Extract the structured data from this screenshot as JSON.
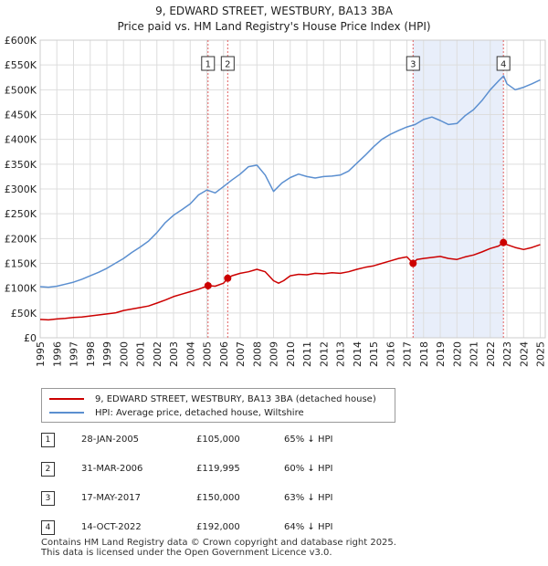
{
  "title": {
    "line1": "9, EDWARD STREET, WESTBURY, BA13 3BA",
    "line2": "Price paid vs. HM Land Registry's House Price Index (HPI)"
  },
  "legend": {
    "property": "9, EDWARD STREET, WESTBURY, BA13 3BA (detached house)",
    "hpi": "HPI: Average price, detached house, Wiltshire"
  },
  "colors": {
    "property": "#cc0000",
    "hpi": "#5b8fd0",
    "shade": "#e8eefa",
    "grid": "#dddddd",
    "marker_line": "#e06060"
  },
  "sales": [
    {
      "num": "1",
      "date": "28-JAN-2005",
      "price": "£105,000",
      "hpi": "65% ↓ HPI"
    },
    {
      "num": "2",
      "date": "31-MAR-2006",
      "price": "£119,995",
      "hpi": "60% ↓ HPI"
    },
    {
      "num": "3",
      "date": "17-MAY-2017",
      "price": "£150,000",
      "hpi": "63% ↓ HPI"
    },
    {
      "num": "4",
      "date": "14-OCT-2022",
      "price": "£192,000",
      "hpi": "64% ↓ HPI"
    }
  ],
  "footer": {
    "line1": "Contains HM Land Registry data © Crown copyright and database right 2025.",
    "line2": "This data is licensed under the Open Government Licence v3.0."
  },
  "chart_data": {
    "type": "line",
    "title": "9, EDWARD STREET, WESTBURY, BA13 3BA — Price paid vs. HM Land Registry's House Price Index (HPI)",
    "xlabel": "",
    "ylabel": "",
    "xlim": [
      1995,
      2025.3
    ],
    "ylim": [
      0,
      600000
    ],
    "grid": true,
    "legend_position": "below",
    "x_ticks": [
      "1995",
      "1996",
      "1997",
      "1998",
      "1999",
      "2000",
      "2001",
      "2002",
      "2003",
      "2004",
      "2005",
      "2006",
      "2007",
      "2008",
      "2009",
      "2010",
      "2011",
      "2012",
      "2013",
      "2014",
      "2015",
      "2016",
      "2017",
      "2018",
      "2019",
      "2020",
      "2021",
      "2022",
      "2023",
      "2024",
      "2025"
    ],
    "y_ticks": [
      {
        "value": 0,
        "label": "£0"
      },
      {
        "value": 50000,
        "label": "£50K"
      },
      {
        "value": 100000,
        "label": "£100K"
      },
      {
        "value": 150000,
        "label": "£150K"
      },
      {
        "value": 200000,
        "label": "£200K"
      },
      {
        "value": 250000,
        "label": "£250K"
      },
      {
        "value": 300000,
        "label": "£300K"
      },
      {
        "value": 350000,
        "label": "£350K"
      },
      {
        "value": 400000,
        "label": "£400K"
      },
      {
        "value": 450000,
        "label": "£450K"
      },
      {
        "value": 500000,
        "label": "£500K"
      },
      {
        "value": 550000,
        "label": "£550K"
      },
      {
        "value": 600000,
        "label": "£600K"
      }
    ],
    "shaded_ranges": [
      [
        2017.37,
        2022.79
      ]
    ],
    "series": [
      {
        "name": "9, EDWARD STREET, WESTBURY, BA13 3BA (detached house)",
        "x": [
          1995.0,
          1995.5,
          1996.0,
          1996.5,
          1997.0,
          1997.5,
          1998.0,
          1998.5,
          1999.0,
          1999.5,
          2000.0,
          2000.5,
          2001.0,
          2001.5,
          2002.0,
          2002.5,
          2003.0,
          2003.5,
          2004.0,
          2004.5,
          2005.07,
          2005.5,
          2006.0,
          2006.25,
          2006.5,
          2007.0,
          2007.5,
          2008.0,
          2008.5,
          2009.0,
          2009.3,
          2009.6,
          2010.0,
          2010.5,
          2011.0,
          2011.5,
          2012.0,
          2012.5,
          2013.0,
          2013.5,
          2014.0,
          2014.5,
          2015.0,
          2015.5,
          2016.0,
          2016.5,
          2017.0,
          2017.37,
          2017.6,
          2018.0,
          2018.5,
          2019.0,
          2019.5,
          2020.0,
          2020.5,
          2021.0,
          2021.5,
          2022.0,
          2022.5,
          2022.79,
          2023.0,
          2023.5,
          2024.0,
          2024.5,
          2025.0
        ],
        "values": [
          37000,
          36000,
          38000,
          39000,
          41000,
          42000,
          44000,
          46000,
          48000,
          50000,
          55000,
          58000,
          61000,
          64000,
          70000,
          76000,
          83000,
          88000,
          93000,
          98000,
          105000,
          104000,
          110000,
          119995,
          125000,
          130000,
          133000,
          138000,
          133000,
          115000,
          110000,
          115000,
          125000,
          128000,
          127000,
          130000,
          129000,
          131000,
          130000,
          133000,
          138000,
          142000,
          145000,
          150000,
          155000,
          160000,
          163000,
          150000,
          158000,
          160000,
          162000,
          164000,
          160000,
          158000,
          163000,
          167000,
          173000,
          180000,
          185000,
          192000,
          188000,
          182000,
          178000,
          182000,
          188000
        ]
      },
      {
        "name": "HPI: Average price, detached house, Wiltshire",
        "x": [
          1995.0,
          1995.5,
          1996.0,
          1996.5,
          1997.0,
          1997.5,
          1998.0,
          1998.5,
          1999.0,
          1999.5,
          2000.0,
          2000.5,
          2001.0,
          2001.5,
          2002.0,
          2002.5,
          2003.0,
          2003.5,
          2004.0,
          2004.5,
          2005.0,
          2005.5,
          2006.0,
          2006.5,
          2007.0,
          2007.5,
          2008.0,
          2008.5,
          2009.0,
          2009.5,
          2010.0,
          2010.5,
          2011.0,
          2011.5,
          2012.0,
          2012.5,
          2013.0,
          2013.5,
          2014.0,
          2014.5,
          2015.0,
          2015.5,
          2016.0,
          2016.5,
          2017.0,
          2017.5,
          2018.0,
          2018.5,
          2019.0,
          2019.5,
          2020.0,
          2020.5,
          2021.0,
          2021.5,
          2022.0,
          2022.5,
          2022.8,
          2023.0,
          2023.5,
          2024.0,
          2024.5,
          2025.0
        ],
        "values": [
          103000,
          102000,
          104000,
          108000,
          112000,
          118000,
          125000,
          132000,
          140000,
          150000,
          160000,
          172000,
          183000,
          195000,
          212000,
          232000,
          247000,
          258000,
          270000,
          288000,
          298000,
          292000,
          305000,
          318000,
          330000,
          345000,
          348000,
          328000,
          295000,
          312000,
          323000,
          330000,
          325000,
          322000,
          325000,
          326000,
          328000,
          336000,
          352000,
          368000,
          385000,
          400000,
          410000,
          418000,
          425000,
          430000,
          440000,
          445000,
          438000,
          430000,
          432000,
          448000,
          460000,
          478000,
          500000,
          518000,
          528000,
          512000,
          500000,
          505000,
          512000,
          520000
        ]
      }
    ],
    "sale_points": [
      {
        "label": "1",
        "x": 2005.07,
        "y": 105000
      },
      {
        "label": "2",
        "x": 2006.25,
        "y": 119995
      },
      {
        "label": "3",
        "x": 2017.37,
        "y": 150000
      },
      {
        "label": "4",
        "x": 2022.79,
        "y": 192000
      }
    ]
  }
}
